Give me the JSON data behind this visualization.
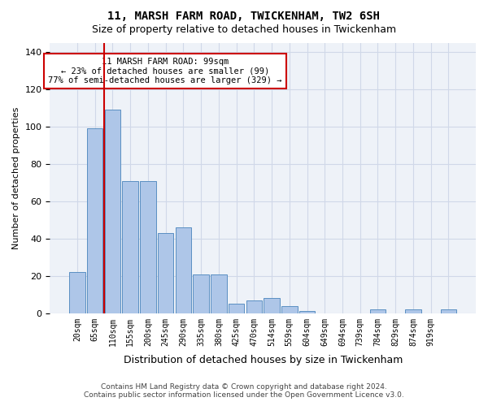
{
  "title1": "11, MARSH FARM ROAD, TWICKENHAM, TW2 6SH",
  "title2": "Size of property relative to detached houses in Twickenham",
  "xlabel": "Distribution of detached houses by size in Twickenham",
  "ylabel": "Number of detached properties",
  "bar_values": [
    22,
    99,
    109,
    71,
    71,
    43,
    46,
    21,
    21,
    5,
    7,
    8,
    4,
    1,
    0,
    0,
    0,
    2,
    0,
    2,
    0,
    2
  ],
  "bar_labels": [
    "20sqm",
    "65sqm",
    "110sqm",
    "155sqm",
    "200sqm",
    "245sqm",
    "290sqm",
    "335sqm",
    "380sqm",
    "425sqm",
    "470sqm",
    "514sqm",
    "559sqm",
    "604sqm",
    "649sqm",
    "694sqm",
    "739sqm",
    "784sqm",
    "829sqm",
    "874sqm",
    "919sqm",
    ""
  ],
  "bar_color": "#aec6e8",
  "bar_edge_color": "#5a8fc2",
  "grid_color": "#d0d8e8",
  "background_color": "#eef2f8",
  "vline_x": 1.5,
  "vline_color": "#cc0000",
  "annotation_text": "11 MARSH FARM ROAD: 99sqm\n← 23% of detached houses are smaller (99)\n77% of semi-detached houses are larger (329) →",
  "annotation_box_color": "#ffffff",
  "annotation_box_edge": "#cc0000",
  "ylim": [
    0,
    145
  ],
  "yticks": [
    0,
    20,
    40,
    60,
    80,
    100,
    120,
    140
  ],
  "footer_line1": "Contains HM Land Registry data © Crown copyright and database right 2024.",
  "footer_line2": "Contains public sector information licensed under the Open Government Licence v3.0."
}
